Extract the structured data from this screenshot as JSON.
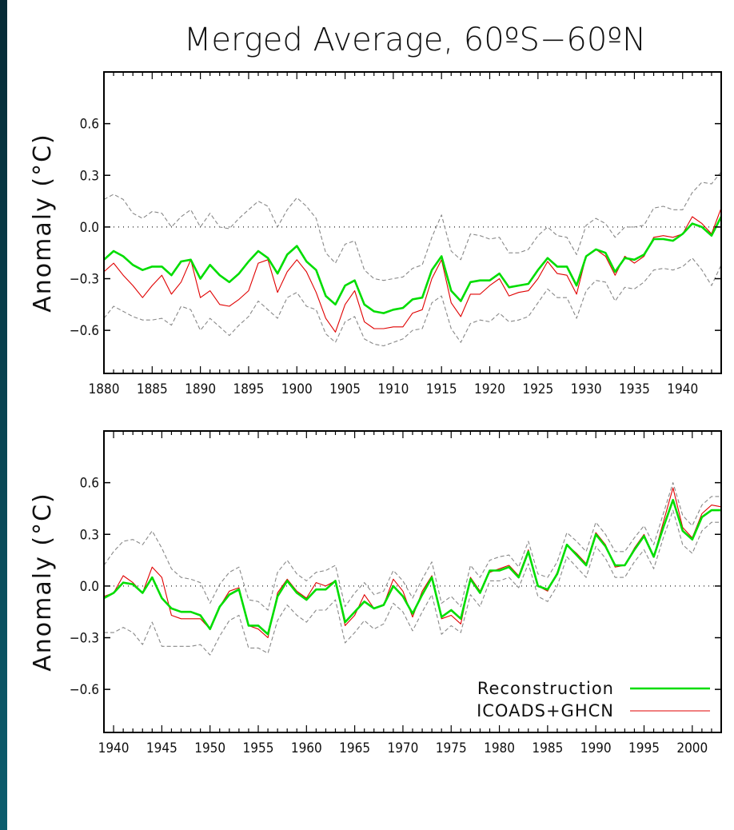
{
  "chart_data": [
    {
      "type": "line",
      "title": "Merged Average, 60ºS−60ºN",
      "xlabel": "",
      "ylabel": "Anomaly (°C)",
      "xlim": [
        1880,
        1944
      ],
      "ylim": [
        -0.85,
        0.9
      ],
      "x_ticks": [
        1880,
        1885,
        1890,
        1895,
        1900,
        1905,
        1910,
        1915,
        1920,
        1925,
        1930,
        1935,
        1940
      ],
      "y_ticks": [
        0.6,
        0.3,
        0.0,
        -0.3,
        -0.6
      ],
      "y_tick_labels": [
        "0.6",
        "0.3",
        "0.0",
        "−0.3",
        "−0.6"
      ],
      "zero_line": true,
      "grid": false,
      "x": [
        1880,
        1881,
        1882,
        1883,
        1884,
        1885,
        1886,
        1887,
        1888,
        1889,
        1890,
        1891,
        1892,
        1893,
        1894,
        1895,
        1896,
        1897,
        1898,
        1899,
        1900,
        1901,
        1902,
        1903,
        1904,
        1905,
        1906,
        1907,
        1908,
        1909,
        1910,
        1911,
        1912,
        1913,
        1914,
        1915,
        1916,
        1917,
        1918,
        1919,
        1920,
        1921,
        1922,
        1923,
        1924,
        1925,
        1926,
        1927,
        1928,
        1929,
        1930,
        1931,
        1932,
        1933,
        1934,
        1935,
        1936,
        1937,
        1938,
        1939,
        1940,
        1941,
        1942,
        1943,
        1944
      ],
      "series": [
        {
          "name": "Reconstruction",
          "color": "#00dd00",
          "values": [
            -0.19,
            -0.14,
            -0.17,
            -0.22,
            -0.25,
            -0.23,
            -0.23,
            -0.28,
            -0.2,
            -0.19,
            -0.3,
            -0.22,
            -0.28,
            -0.32,
            -0.27,
            -0.2,
            -0.14,
            -0.18,
            -0.27,
            -0.16,
            -0.11,
            -0.2,
            -0.25,
            -0.4,
            -0.45,
            -0.34,
            -0.31,
            -0.45,
            -0.49,
            -0.5,
            -0.48,
            -0.47,
            -0.42,
            -0.41,
            -0.25,
            -0.17,
            -0.37,
            -0.43,
            -0.32,
            -0.31,
            -0.31,
            -0.27,
            -0.35,
            -0.34,
            -0.33,
            -0.25,
            -0.18,
            -0.23,
            -0.23,
            -0.34,
            -0.17,
            -0.13,
            -0.15,
            -0.26,
            -0.18,
            -0.19,
            -0.16,
            -0.07,
            -0.07,
            -0.08,
            -0.04,
            0.02,
            0.0,
            -0.05,
            0.06
          ]
        },
        {
          "name": "ICOADS+GHCN",
          "color": "#e00000",
          "values": [
            -0.26,
            -0.21,
            -0.28,
            -0.34,
            -0.41,
            -0.34,
            -0.28,
            -0.39,
            -0.32,
            -0.19,
            -0.41,
            -0.37,
            -0.45,
            -0.46,
            -0.42,
            -0.37,
            -0.21,
            -0.19,
            -0.38,
            -0.26,
            -0.19,
            -0.26,
            -0.38,
            -0.53,
            -0.61,
            -0.45,
            -0.37,
            -0.55,
            -0.59,
            -0.59,
            -0.58,
            -0.58,
            -0.5,
            -0.48,
            -0.3,
            -0.19,
            -0.44,
            -0.52,
            -0.39,
            -0.39,
            -0.34,
            -0.3,
            -0.4,
            -0.38,
            -0.37,
            -0.3,
            -0.2,
            -0.27,
            -0.28,
            -0.39,
            -0.17,
            -0.13,
            -0.17,
            -0.28,
            -0.17,
            -0.21,
            -0.17,
            -0.06,
            -0.05,
            -0.06,
            -0.04,
            0.06,
            0.02,
            -0.04,
            0.11
          ]
        },
        {
          "name": "",
          "role": "upper-bound",
          "color": "#888888",
          "values": [
            0.16,
            0.19,
            0.16,
            0.08,
            0.05,
            0.09,
            0.08,
            0.0,
            0.06,
            0.1,
            0.0,
            0.08,
            0.0,
            -0.01,
            0.05,
            0.1,
            0.15,
            0.12,
            0.0,
            0.1,
            0.17,
            0.12,
            0.05,
            -0.15,
            -0.21,
            -0.1,
            -0.08,
            -0.25,
            -0.3,
            -0.31,
            -0.3,
            -0.29,
            -0.24,
            -0.22,
            -0.06,
            0.07,
            -0.14,
            -0.19,
            -0.04,
            -0.05,
            -0.07,
            -0.06,
            -0.15,
            -0.15,
            -0.13,
            -0.05,
            0.0,
            -0.05,
            -0.06,
            -0.16,
            0.01,
            0.05,
            0.02,
            -0.06,
            0.0,
            0.0,
            0.01,
            0.11,
            0.12,
            0.1,
            0.1,
            0.2,
            0.26,
            0.25,
            0.32
          ]
        },
        {
          "name": "",
          "role": "lower-bound",
          "color": "#888888",
          "values": [
            -0.53,
            -0.46,
            -0.49,
            -0.52,
            -0.54,
            -0.54,
            -0.53,
            -0.57,
            -0.46,
            -0.48,
            -0.6,
            -0.53,
            -0.58,
            -0.63,
            -0.57,
            -0.52,
            -0.43,
            -0.48,
            -0.53,
            -0.41,
            -0.38,
            -0.46,
            -0.48,
            -0.62,
            -0.67,
            -0.55,
            -0.52,
            -0.65,
            -0.68,
            -0.69,
            -0.67,
            -0.65,
            -0.6,
            -0.59,
            -0.44,
            -0.4,
            -0.59,
            -0.67,
            -0.56,
            -0.54,
            -0.55,
            -0.5,
            -0.55,
            -0.54,
            -0.52,
            -0.44,
            -0.36,
            -0.41,
            -0.41,
            -0.53,
            -0.37,
            -0.31,
            -0.32,
            -0.43,
            -0.35,
            -0.36,
            -0.32,
            -0.25,
            -0.24,
            -0.25,
            -0.23,
            -0.18,
            -0.25,
            -0.34,
            -0.22
          ]
        }
      ]
    },
    {
      "type": "line",
      "title": "",
      "xlabel": "",
      "ylabel": "Anomaly (°C)",
      "xlim": [
        1939,
        2003
      ],
      "ylim": [
        -0.85,
        0.9
      ],
      "x_ticks": [
        1940,
        1945,
        1950,
        1955,
        1960,
        1965,
        1970,
        1975,
        1980,
        1985,
        1990,
        1995,
        2000
      ],
      "y_ticks": [
        0.6,
        0.3,
        0.0,
        -0.3,
        -0.6
      ],
      "y_tick_labels": [
        "0.6",
        "0.3",
        "0.0",
        "−0.3",
        "−0.6"
      ],
      "zero_line": true,
      "grid": false,
      "legend": {
        "position": "bottom-right",
        "entries": [
          "Reconstruction",
          "ICOADS+GHCN"
        ]
      },
      "x": [
        1939,
        1940,
        1941,
        1942,
        1943,
        1944,
        1945,
        1946,
        1947,
        1948,
        1949,
        1950,
        1951,
        1952,
        1953,
        1954,
        1955,
        1956,
        1957,
        1958,
        1959,
        1960,
        1961,
        1962,
        1963,
        1964,
        1965,
        1966,
        1967,
        1968,
        1969,
        1970,
        1971,
        1972,
        1973,
        1974,
        1975,
        1976,
        1977,
        1978,
        1979,
        1980,
        1981,
        1982,
        1983,
        1984,
        1985,
        1986,
        1987,
        1988,
        1989,
        1990,
        1991,
        1992,
        1993,
        1994,
        1995,
        1996,
        1997,
        1998,
        1999,
        2000,
        2001,
        2002,
        2003
      ],
      "series": [
        {
          "name": "Reconstruction",
          "color": "#00dd00",
          "values": [
            -0.07,
            -0.04,
            0.02,
            0.01,
            -0.04,
            0.05,
            -0.07,
            -0.13,
            -0.15,
            -0.15,
            -0.17,
            -0.25,
            -0.12,
            -0.05,
            -0.02,
            -0.23,
            -0.23,
            -0.28,
            -0.06,
            0.03,
            -0.04,
            -0.08,
            -0.02,
            -0.02,
            0.03,
            -0.21,
            -0.15,
            -0.09,
            -0.13,
            -0.11,
            0.0,
            -0.06,
            -0.16,
            -0.05,
            0.05,
            -0.18,
            -0.14,
            -0.19,
            0.04,
            -0.04,
            0.09,
            0.09,
            0.11,
            0.05,
            0.2,
            0.0,
            -0.02,
            0.07,
            0.24,
            0.18,
            0.12,
            0.3,
            0.23,
            0.12,
            0.12,
            0.21,
            0.29,
            0.17,
            0.34,
            0.5,
            0.32,
            0.27,
            0.4,
            0.44,
            0.44
          ]
        },
        {
          "name": "ICOADS+GHCN",
          "color": "#e00000",
          "values": [
            -0.06,
            -0.04,
            0.06,
            0.02,
            -0.04,
            0.11,
            0.05,
            -0.17,
            -0.19,
            -0.19,
            -0.19,
            -0.25,
            -0.12,
            -0.03,
            -0.01,
            -0.23,
            -0.25,
            -0.3,
            -0.04,
            0.04,
            -0.03,
            -0.07,
            0.02,
            0.0,
            0.03,
            -0.23,
            -0.17,
            -0.05,
            -0.13,
            -0.11,
            0.04,
            -0.03,
            -0.18,
            -0.03,
            0.06,
            -0.19,
            -0.17,
            -0.22,
            0.05,
            -0.03,
            0.08,
            0.1,
            0.12,
            0.06,
            0.21,
            0.0,
            -0.03,
            0.08,
            0.24,
            0.19,
            0.13,
            0.31,
            0.24,
            0.11,
            0.12,
            0.22,
            0.3,
            0.17,
            0.37,
            0.57,
            0.34,
            0.28,
            0.42,
            0.47,
            0.46
          ]
        },
        {
          "name": "",
          "role": "upper-bound",
          "color": "#888888",
          "values": [
            0.12,
            0.2,
            0.26,
            0.27,
            0.24,
            0.32,
            0.22,
            0.1,
            0.05,
            0.04,
            0.02,
            -0.1,
            0.01,
            0.08,
            0.11,
            -0.08,
            -0.09,
            -0.14,
            0.08,
            0.15,
            0.07,
            0.03,
            0.08,
            0.09,
            0.12,
            -0.12,
            -0.04,
            0.02,
            -0.05,
            -0.03,
            0.09,
            0.03,
            -0.07,
            0.04,
            0.14,
            -0.1,
            -0.06,
            -0.12,
            0.12,
            0.05,
            0.15,
            0.17,
            0.18,
            0.11,
            0.26,
            0.07,
            0.05,
            0.14,
            0.31,
            0.26,
            0.2,
            0.37,
            0.3,
            0.2,
            0.2,
            0.28,
            0.35,
            0.24,
            0.42,
            0.6,
            0.41,
            0.35,
            0.47,
            0.52,
            0.52
          ]
        },
        {
          "name": "",
          "role": "lower-bound",
          "color": "#888888",
          "values": [
            -0.27,
            -0.27,
            -0.24,
            -0.27,
            -0.34,
            -0.21,
            -0.35,
            -0.35,
            -0.35,
            -0.35,
            -0.34,
            -0.4,
            -0.29,
            -0.2,
            -0.17,
            -0.36,
            -0.36,
            -0.39,
            -0.2,
            -0.11,
            -0.17,
            -0.21,
            -0.14,
            -0.14,
            -0.08,
            -0.33,
            -0.27,
            -0.2,
            -0.25,
            -0.22,
            -0.1,
            -0.15,
            -0.26,
            -0.15,
            -0.05,
            -0.28,
            -0.23,
            -0.27,
            -0.05,
            -0.12,
            0.03,
            0.03,
            0.05,
            -0.01,
            0.13,
            -0.06,
            -0.09,
            0.0,
            0.17,
            0.11,
            0.05,
            0.23,
            0.16,
            0.05,
            0.05,
            0.14,
            0.21,
            0.1,
            0.28,
            0.44,
            0.24,
            0.19,
            0.32,
            0.37,
            0.37
          ]
        }
      ]
    }
  ]
}
